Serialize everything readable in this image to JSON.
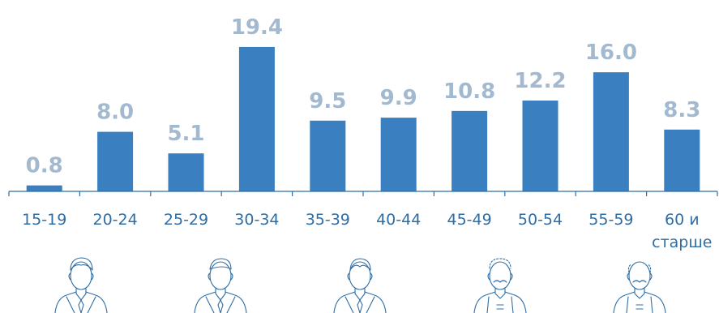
{
  "chart_data": {
    "type": "bar",
    "title": "",
    "xlabel": "",
    "ylabel": "",
    "categories": [
      "15-19",
      "20-24",
      "25-29",
      "30-34",
      "35-39",
      "40-44",
      "45-49",
      "50-54",
      "55-59",
      "60 и старше"
    ],
    "values": [
      0.8,
      8.0,
      5.1,
      19.4,
      9.5,
      9.9,
      10.8,
      12.2,
      16.0,
      8.3
    ],
    "value_labels": [
      "0.8",
      "8.0",
      "5.1",
      "19.4",
      "9.5",
      "9.9",
      "10.8",
      "12.2",
      "16.0",
      "8.3"
    ],
    "ylim": [
      0,
      20
    ],
    "grid": false,
    "legend": "none",
    "bar_color": "#3a7fbf",
    "label_color": "#a3b9d0",
    "category_color": "#2f6ea5"
  },
  "icons": [
    {
      "name": "young-man-icon"
    },
    {
      "name": "man-in-suit-icon"
    },
    {
      "name": "businessman-icon"
    },
    {
      "name": "mustache-man-icon"
    },
    {
      "name": "elderly-man-icon"
    }
  ]
}
